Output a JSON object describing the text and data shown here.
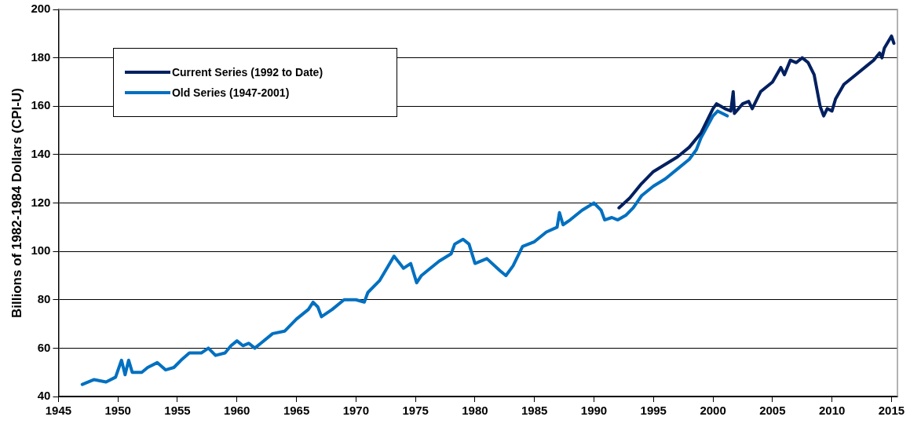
{
  "chart_data": {
    "type": "line",
    "ylabel": "Billions of 1982-1984 Dollars (CPI-U)",
    "xlim": [
      1945,
      2015.5
    ],
    "xticks": [
      1945,
      1950,
      1955,
      1960,
      1965,
      1970,
      1975,
      1980,
      1985,
      1990,
      1995,
      2000,
      2005,
      2010,
      2015
    ],
    "ylim": [
      40,
      200
    ],
    "yticks": [
      40,
      60,
      80,
      100,
      120,
      140,
      160,
      180,
      200
    ],
    "grid": "y",
    "legend": "top left",
    "marker": "none",
    "line_style": "solid",
    "series": [
      {
        "name": "Current Series (1992 to Date)",
        "color": "#002060",
        "x": [
          1992.1,
          1993,
          1994,
          1995,
          1996,
          1997,
          1998,
          1999,
          2000,
          2000.3,
          2001,
          2001.5,
          2001.7,
          2001.8,
          2002.5,
          2003,
          2003.3,
          2004,
          2005,
          2005.7,
          2006,
          2006.5,
          2007,
          2007.5,
          2008,
          2008.5,
          2009,
          2009.3,
          2009.6,
          2010,
          2010.3,
          2011,
          2012,
          2013,
          2013.5,
          2014,
          2014.2,
          2014.4,
          2015,
          2015.2
        ],
        "values": [
          118,
          122,
          128,
          133,
          136,
          139,
          143,
          149,
          159,
          161,
          159,
          158,
          166,
          157,
          161,
          162,
          159,
          166,
          170,
          176,
          173,
          179,
          178,
          180,
          178,
          173,
          160,
          156,
          159,
          158,
          163,
          169,
          173,
          177,
          179,
          182,
          180,
          184,
          189,
          186
        ]
      },
      {
        "name": "Old Series (1947-2001)",
        "color": "#0070c0",
        "x": [
          1947,
          1948,
          1949,
          1949.8,
          1950.3,
          1950.6,
          1950.9,
          1951.2,
          1952,
          1952.5,
          1953.3,
          1954,
          1954.7,
          1955.3,
          1956,
          1957,
          1957.6,
          1958.2,
          1959,
          1959.5,
          1960,
          1960.5,
          1961,
          1961.5,
          1962,
          1963,
          1964,
          1965,
          1966,
          1966.4,
          1966.8,
          1967.1,
          1968,
          1969,
          1970,
          1970.7,
          1971,
          1972,
          1973.2,
          1974,
          1974.6,
          1975.1,
          1975.5,
          1976,
          1977,
          1978,
          1978.3,
          1979,
          1979.5,
          1980,
          1981,
          1982.1,
          1982.6,
          1983.2,
          1984,
          1985,
          1986,
          1986.9,
          1987.1,
          1987.4,
          1988,
          1989,
          1990,
          1990.6,
          1990.9,
          1991.5,
          1992,
          1992.7,
          1993.3,
          1994,
          1995,
          1996,
          1997,
          1998,
          1998.6,
          1999,
          2000,
          2000.4,
          2001.2
        ],
        "values": [
          45,
          47,
          46,
          48,
          55,
          49,
          55,
          50,
          50,
          52,
          54,
          51,
          52,
          55,
          58,
          58,
          60,
          57,
          58,
          61,
          63,
          61,
          62,
          60,
          62,
          66,
          67,
          72,
          76,
          79,
          77,
          73,
          76,
          80,
          80,
          79,
          83,
          88,
          98,
          93,
          95,
          87,
          90,
          92,
          96,
          99,
          103,
          105,
          103,
          95,
          97,
          92,
          90,
          94,
          102,
          104,
          108,
          110,
          116,
          111,
          113,
          117,
          120,
          117,
          113,
          114,
          113,
          115,
          118,
          123,
          127,
          130,
          134,
          138,
          142,
          147,
          156,
          158,
          156
        ]
      }
    ]
  }
}
